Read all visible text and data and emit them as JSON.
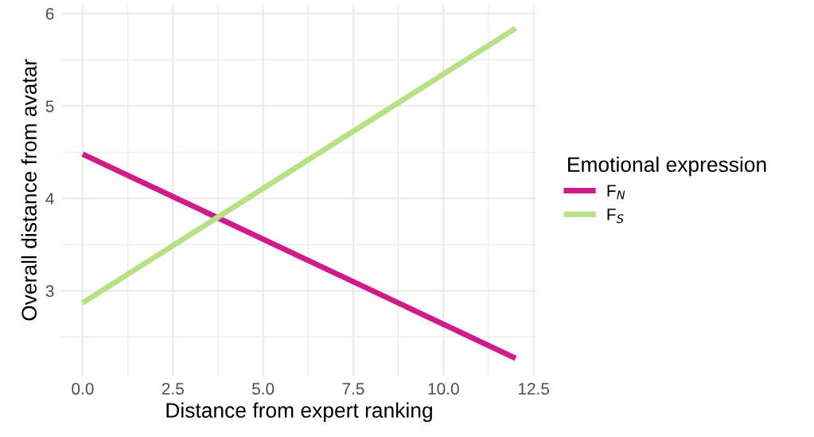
{
  "chart_data": {
    "type": "line",
    "xlabel": "Distance from expert ranking",
    "ylabel": "Overall distance from avatar",
    "legend_title": "Emotional expression",
    "x": [
      0,
      12
    ],
    "series": [
      {
        "name": "F$_{N}$",
        "color": "#d01c8b",
        "values": [
          4.48,
          2.27
        ]
      },
      {
        "name": "F$_{S}$",
        "color": "#b8e186",
        "values": [
          2.87,
          5.84
        ]
      }
    ],
    "xlim": [
      -0.6,
      12.6
    ],
    "ylim": [
      2.08,
      6.1
    ],
    "xticks": [
      {
        "value": 0,
        "label": "0.0"
      },
      {
        "value": 2.5,
        "label": "2.5"
      },
      {
        "value": 5,
        "label": "5.0"
      },
      {
        "value": 7.5,
        "label": "7.5"
      },
      {
        "value": 10,
        "label": "10.0"
      },
      {
        "value": 12.5,
        "label": "12.5"
      }
    ],
    "yticks": [
      3,
      4,
      5,
      6
    ],
    "grid": true,
    "legend": "right",
    "marker": "none",
    "line_style": "solid"
  }
}
